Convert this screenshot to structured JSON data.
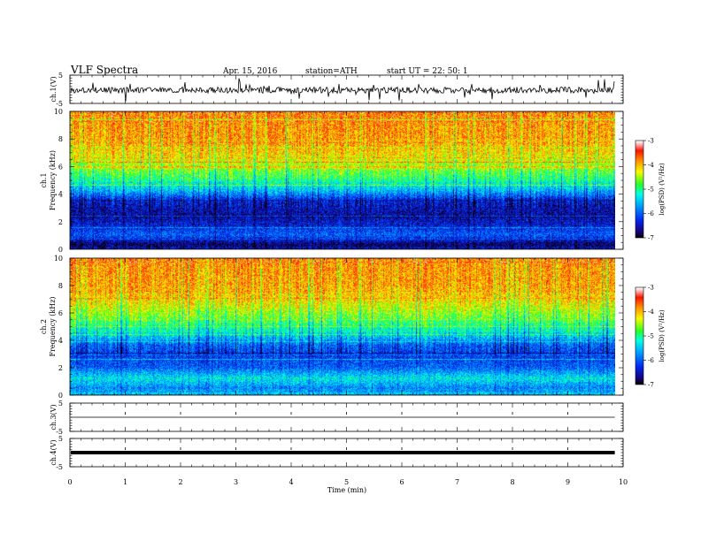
{
  "header": {
    "title": "VLF  Spectra",
    "date": "Apr. 15, 2016",
    "station": "station=ATH",
    "start": "start  UT  =    22: 50: 1"
  },
  "chart_data": [
    {
      "type": "line",
      "panel": "ch1-waveform",
      "ylabel": "ch.1(V)",
      "yticks": [
        "5",
        "-5"
      ],
      "ylim": [
        -5,
        5
      ],
      "xlim": [
        0,
        10
      ],
      "trace_end_min": 9.85,
      "description": "noisy waveform around -0.3 V with spikes"
    },
    {
      "type": "heatmap",
      "panel": "ch1-spectrogram",
      "ylabel": "ch.1\nFrequency (kHz)",
      "yticks": [
        "0",
        "2",
        "4",
        "6",
        "8",
        "10"
      ],
      "ylim": [
        0,
        10
      ],
      "xlim": [
        0,
        10
      ],
      "data_end_min": 9.85,
      "colorbar": {
        "label": "log(PSD) (V²/Hz)",
        "ticks": [
          "-3",
          "-4",
          "-5",
          "-6",
          "-7"
        ],
        "range": [
          -7,
          -3
        ]
      },
      "profile_khz": [
        [
          0,
          -6.5
        ],
        [
          0.3,
          -6.8
        ],
        [
          1.0,
          -6.0
        ],
        [
          1.8,
          -6.4
        ],
        [
          2.5,
          -6.6
        ],
        [
          3.5,
          -6.4
        ],
        [
          4.2,
          -5.6
        ],
        [
          5.0,
          -5.0
        ],
        [
          6.0,
          -4.5
        ],
        [
          7.0,
          -4.1
        ],
        [
          8.0,
          -3.9
        ],
        [
          10.0,
          -3.8
        ]
      ]
    },
    {
      "type": "heatmap",
      "panel": "ch2-spectrogram",
      "ylabel": "ch.2\nFrequency (kHz)",
      "yticks": [
        "0",
        "2",
        "4",
        "6",
        "8",
        "10"
      ],
      "ylim": [
        0,
        10
      ],
      "xlim": [
        0,
        10
      ],
      "data_end_min": 9.85,
      "colorbar": {
        "label": "log(PSD) (V²/Hz)",
        "ticks": [
          "-3",
          "-4",
          "-5",
          "-6",
          "-7"
        ],
        "range": [
          -7,
          -3
        ]
      },
      "profile_khz": [
        [
          0,
          -5.4
        ],
        [
          0.5,
          -5.8
        ],
        [
          1.2,
          -5.3
        ],
        [
          2.0,
          -6.0
        ],
        [
          3.0,
          -6.2
        ],
        [
          3.6,
          -6.0
        ],
        [
          4.5,
          -5.3
        ],
        [
          5.2,
          -4.9
        ],
        [
          6.0,
          -4.5
        ],
        [
          7.0,
          -4.1
        ],
        [
          8.0,
          -3.9
        ],
        [
          10.0,
          -3.8
        ]
      ]
    },
    {
      "type": "line",
      "panel": "ch3-waveform",
      "ylabel": "ch.3(V)",
      "yticks": [
        "5",
        "-5"
      ],
      "ylim": [
        -5,
        5
      ],
      "xlim": [
        0,
        10
      ],
      "trace_end_min": 9.85,
      "description": "flat line near 0 V"
    },
    {
      "type": "line",
      "panel": "ch4-waveform",
      "ylabel": "ch.4(V)",
      "yticks": [
        "5",
        "-5"
      ],
      "ylim": [
        -5,
        5
      ],
      "xlim": [
        0,
        10
      ],
      "trace_end_min": 9.85,
      "description": "thick flat line near 0 V"
    }
  ],
  "xaxis": {
    "label": "Time  (min)",
    "ticks": [
      "0",
      "1",
      "2",
      "3",
      "4",
      "5",
      "6",
      "7",
      "8",
      "9",
      "10"
    ],
    "range": [
      0,
      10
    ]
  },
  "colors": {
    "axis": "#000000",
    "trace": "#000000"
  }
}
